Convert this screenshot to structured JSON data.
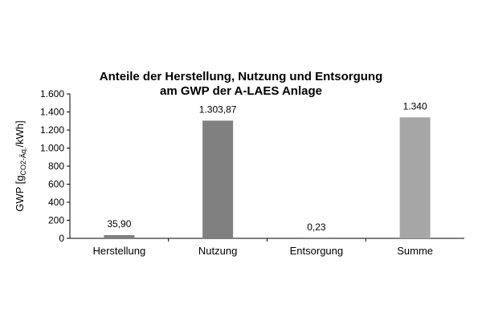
{
  "chart_data": {
    "type": "bar",
    "title_line1": "Anteile der Herstellung, Nutzung und Entsorgung",
    "title_line2": "am GWP der A-LAES Anlage",
    "ylabel_main": "GWP [g",
    "ylabel_sub": "CO2-Äq.",
    "ylabel_end": "/kWh]",
    "ylim": [
      0,
      1600
    ],
    "yticks": [
      0,
      200,
      400,
      600,
      800,
      1000,
      1200,
      1400,
      1600
    ],
    "ytick_labels": [
      "0",
      "200",
      "400",
      "600",
      "800",
      "1.000",
      "1.200",
      "1.400",
      "1.600"
    ],
    "categories": [
      "Herstellung",
      "Nutzung",
      "Entsorgung",
      "Summe"
    ],
    "values": [
      35.9,
      1303.87,
      0.23,
      1340
    ],
    "value_labels": [
      "35,90",
      "1.303,87",
      "0,23",
      "1.340"
    ],
    "colors": [
      "#808080",
      "#808080",
      "#808080",
      "#a6a6a6"
    ],
    "grid": false,
    "legend": "none"
  }
}
